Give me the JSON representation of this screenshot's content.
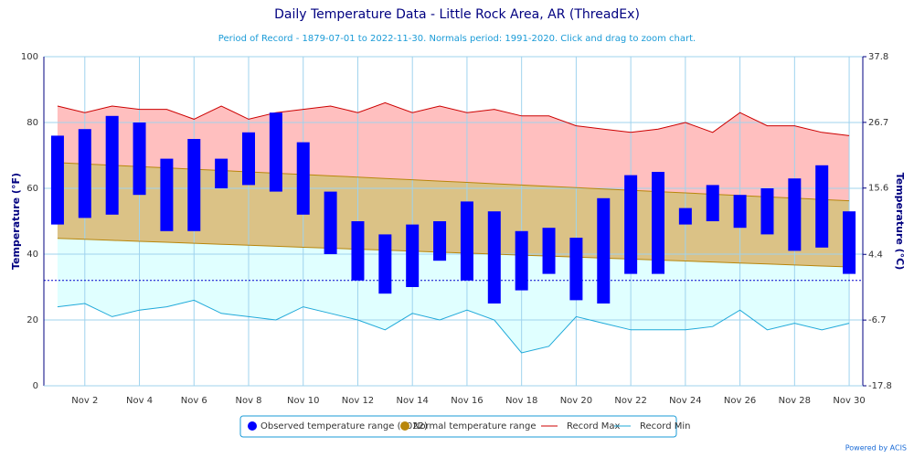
{
  "chart_data": {
    "type": "temperature-range",
    "title": "Daily Temperature Data - Little Rock Area, AR (ThreadEx)",
    "subtitle": "Period of Record - 1879-07-01 to 2022-11-30. Normals period: 1991-2020. Click and drag to zoom chart.",
    "y_label": "Temperature (°F)",
    "y2_label": "Temperature (°C)",
    "categories": [
      null,
      "Nov 2",
      null,
      "Nov 4",
      null,
      "Nov 6",
      null,
      "Nov 8",
      null,
      "Nov 10",
      null,
      "Nov 12",
      null,
      "Nov 14",
      null,
      "Nov 16",
      null,
      "Nov 18",
      null,
      "Nov 20",
      null,
      "Nov 22",
      null,
      "Nov 24",
      null,
      "Nov 26",
      null,
      "Nov 28",
      null,
      "Nov 30"
    ],
    "ylim": [
      0,
      100
    ],
    "yticks": [
      0,
      20,
      40,
      60,
      80,
      100
    ],
    "y2lim": [
      -17.8,
      37.8
    ],
    "y2ticks": [
      -17.8,
      -6.7,
      4.4,
      15.6,
      26.7,
      37.8
    ],
    "reference_line": 32,
    "grid": true,
    "series": [
      {
        "name": "Observed temperature range (2022)",
        "color": "#0000ff",
        "low": [
          49,
          51,
          52,
          58,
          47,
          47,
          60,
          61,
          59,
          52,
          40,
          32,
          28,
          30,
          38,
          32,
          25,
          29,
          34,
          26,
          25,
          34,
          34,
          49,
          50,
          48,
          46,
          41,
          42,
          34
        ],
        "high": [
          76,
          78,
          82,
          80,
          69,
          75,
          69,
          77,
          83,
          74,
          59,
          50,
          46,
          49,
          50,
          56,
          53,
          47,
          48,
          45,
          57,
          64,
          65,
          54,
          61,
          58,
          60,
          63,
          67,
          53
        ]
      },
      {
        "name": "Normal temperature range",
        "color": "#b8860b",
        "low": [
          44.8,
          44.5,
          44.2,
          43.9,
          43.6,
          43.3,
          43.0,
          42.7,
          42.4,
          42.1,
          41.8,
          41.5,
          41.2,
          40.9,
          40.6,
          40.3,
          40.0,
          39.7,
          39.4,
          39.1,
          38.8,
          38.5,
          38.2,
          37.9,
          37.6,
          37.3,
          37.0,
          36.7,
          36.4,
          36.1
        ],
        "high": [
          67.8,
          67.4,
          67.0,
          66.6,
          66.2,
          65.8,
          65.4,
          65.0,
          64.6,
          64.2,
          63.8,
          63.4,
          63.0,
          62.6,
          62.2,
          61.8,
          61.4,
          61.0,
          60.6,
          60.2,
          59.8,
          59.4,
          59.0,
          58.6,
          58.2,
          57.8,
          57.4,
          57.0,
          56.6,
          56.2
        ]
      },
      {
        "name": "Record Max",
        "color": "#cc0000",
        "values": [
          85,
          83,
          85,
          84,
          84,
          81,
          85,
          81,
          83,
          84,
          85,
          83,
          86,
          83,
          85,
          83,
          84,
          82,
          82,
          79,
          78,
          77,
          78,
          80,
          77,
          83,
          79,
          79,
          77,
          76
        ]
      },
      {
        "name": "Record Min",
        "color": "#1fa9d9",
        "values": [
          24,
          25,
          21,
          23,
          24,
          26,
          22,
          21,
          20,
          24,
          22,
          20,
          17,
          22,
          20,
          23,
          20,
          10,
          12,
          21,
          19,
          17,
          17,
          17,
          18,
          23,
          17,
          19,
          17,
          19
        ]
      }
    ],
    "credit": "Powered by ACIS"
  }
}
